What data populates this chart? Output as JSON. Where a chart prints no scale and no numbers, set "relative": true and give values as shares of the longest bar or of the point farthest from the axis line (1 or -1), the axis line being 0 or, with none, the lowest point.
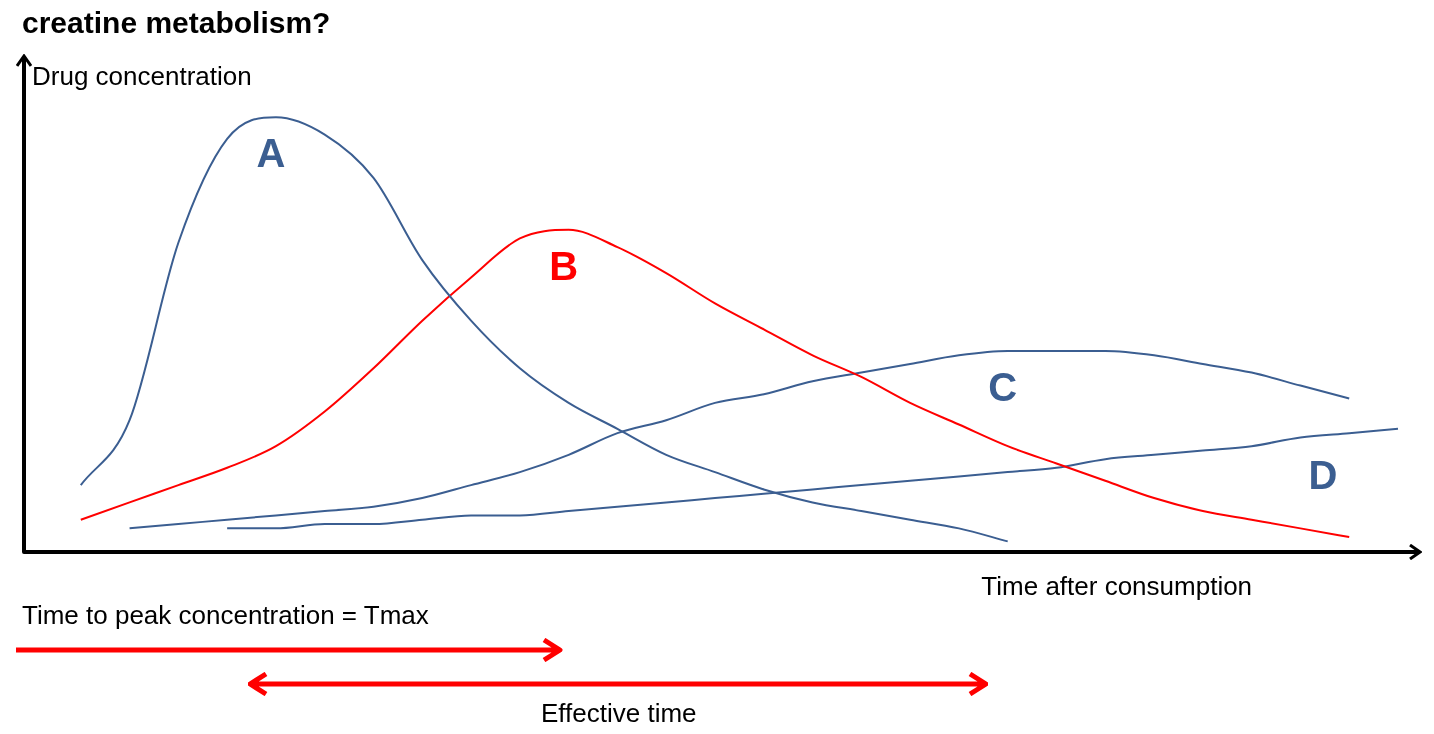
{
  "chart_data": {
    "type": "line",
    "title": "creatine metabolism?",
    "xlabel": "Time after consumption",
    "ylabel": "Drug concentration",
    "relative": true,
    "marker": "none",
    "categories": [
      null,
      null,
      null,
      null,
      null,
      null,
      null,
      null,
      null,
      null,
      null,
      null,
      null,
      null,
      null,
      null,
      null,
      null,
      null,
      null,
      null,
      null,
      null,
      null,
      null,
      null,
      null,
      null,
      null
    ],
    "series": [
      {
        "name": "A",
        "color": "#3b5e91",
        "values": [
          null,
          0.15,
          0.3,
          0.71,
          0.95,
          1,
          0.96,
          0.86,
          0.67,
          0.53,
          0.42,
          0.34,
          0.28,
          0.22,
          0.18,
          0.14,
          0.11,
          0.09,
          0.07,
          0.05,
          0.02,
          null,
          null,
          null,
          null,
          null,
          null,
          null,
          null
        ]
      },
      {
        "name": "B",
        "color": "#ff0000",
        "values": [
          null,
          0.07,
          0.11,
          0.15,
          0.19,
          0.24,
          0.32,
          0.42,
          0.53,
          0.63,
          0.72,
          0.74,
          0.7,
          0.64,
          0.57,
          0.51,
          0.45,
          0.4,
          0.34,
          0.29,
          0.24,
          0.2,
          0.16,
          0.12,
          0.09,
          0.07,
          0.05,
          0.03,
          null
        ]
      },
      {
        "name": "C",
        "color": "#3b5e91",
        "values": [
          null,
          null,
          0.05,
          0.06,
          0.07,
          0.08,
          0.09,
          0.1,
          0.12,
          0.15,
          0.18,
          0.22,
          0.27,
          0.3,
          0.34,
          0.36,
          0.39,
          0.41,
          0.43,
          0.45,
          0.46,
          0.46,
          0.46,
          0.45,
          0.43,
          0.41,
          0.38,
          0.35,
          null
        ]
      },
      {
        "name": "D",
        "color": "#3b5e91",
        "values": [
          null,
          null,
          null,
          null,
          0.05,
          0.05,
          0.06,
          0.06,
          0.07,
          0.08,
          0.08,
          0.09,
          0.1,
          0.11,
          0.12,
          0.13,
          0.14,
          0.15,
          0.16,
          0.17,
          0.18,
          0.19,
          0.21,
          0.22,
          0.23,
          0.24,
          0.26,
          0.27,
          0.28
        ]
      }
    ],
    "annotations": [
      "Time to peak concentration = Tmax",
      "Effective time"
    ]
  }
}
